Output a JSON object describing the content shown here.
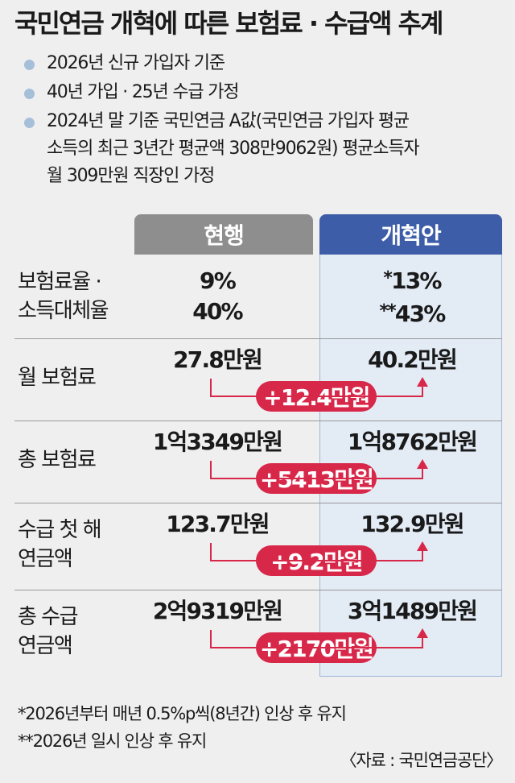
{
  "title": "국민연금 개혁에 따른 보험료 · 수급액 추계",
  "assumptions": [
    "2026년 신규 가입자 기준",
    "40년 가입 · 25년 수급 가정",
    "2024년 말 기준 국민연금 A값(국민연금 가입자 평균",
    "소득의 최근 3년간 평균액 308만9062원) 평균소득자",
    "월 309만원 직장인 가정"
  ],
  "chart_data": {
    "type": "table",
    "columns": [
      "현행",
      "개혁안"
    ],
    "rows": [
      {
        "label": [
          "보험료율 ·",
          "소득대체율"
        ],
        "current": [
          "9%",
          "40%"
        ],
        "reform": [
          {
            "mark": "*",
            "value": "13%"
          },
          {
            "mark": "**",
            "value": "43%"
          }
        ],
        "increase": ""
      },
      {
        "label": [
          "월 보험료"
        ],
        "current": [
          "27.8만원"
        ],
        "reform": [
          {
            "mark": "",
            "value": "40.2만원"
          }
        ],
        "increase": "+12.4만원"
      },
      {
        "label": [
          "총 보험료"
        ],
        "current": [
          "1억3349만원"
        ],
        "reform": [
          {
            "mark": "",
            "value": "1억8762만원"
          }
        ],
        "increase": "+5413만원"
      },
      {
        "label": [
          "수급 첫 해",
          "연금액"
        ],
        "current": [
          "123.7만원"
        ],
        "reform": [
          {
            "mark": "",
            "value": "132.9만원"
          }
        ],
        "increase": "+9.2만원"
      },
      {
        "label": [
          "총 수급",
          "연금액"
        ],
        "current": [
          "2억9319만원"
        ],
        "reform": [
          {
            "mark": "",
            "value": "3억1489만원"
          }
        ],
        "increase": "+2170만원"
      }
    ],
    "colors": {
      "current_header": "#8e8e8e",
      "reform_header": "#3d5da8",
      "reform_column": "#e3ebf5",
      "increase": "#d8284a"
    }
  },
  "footnotes": [
    "*2026년부터 매년 0.5%p씩(8년간) 인상 후 유지",
    "**2026년 일시 인상 후 유지"
  ],
  "source": "〈자료 : 국민연금공단〉"
}
